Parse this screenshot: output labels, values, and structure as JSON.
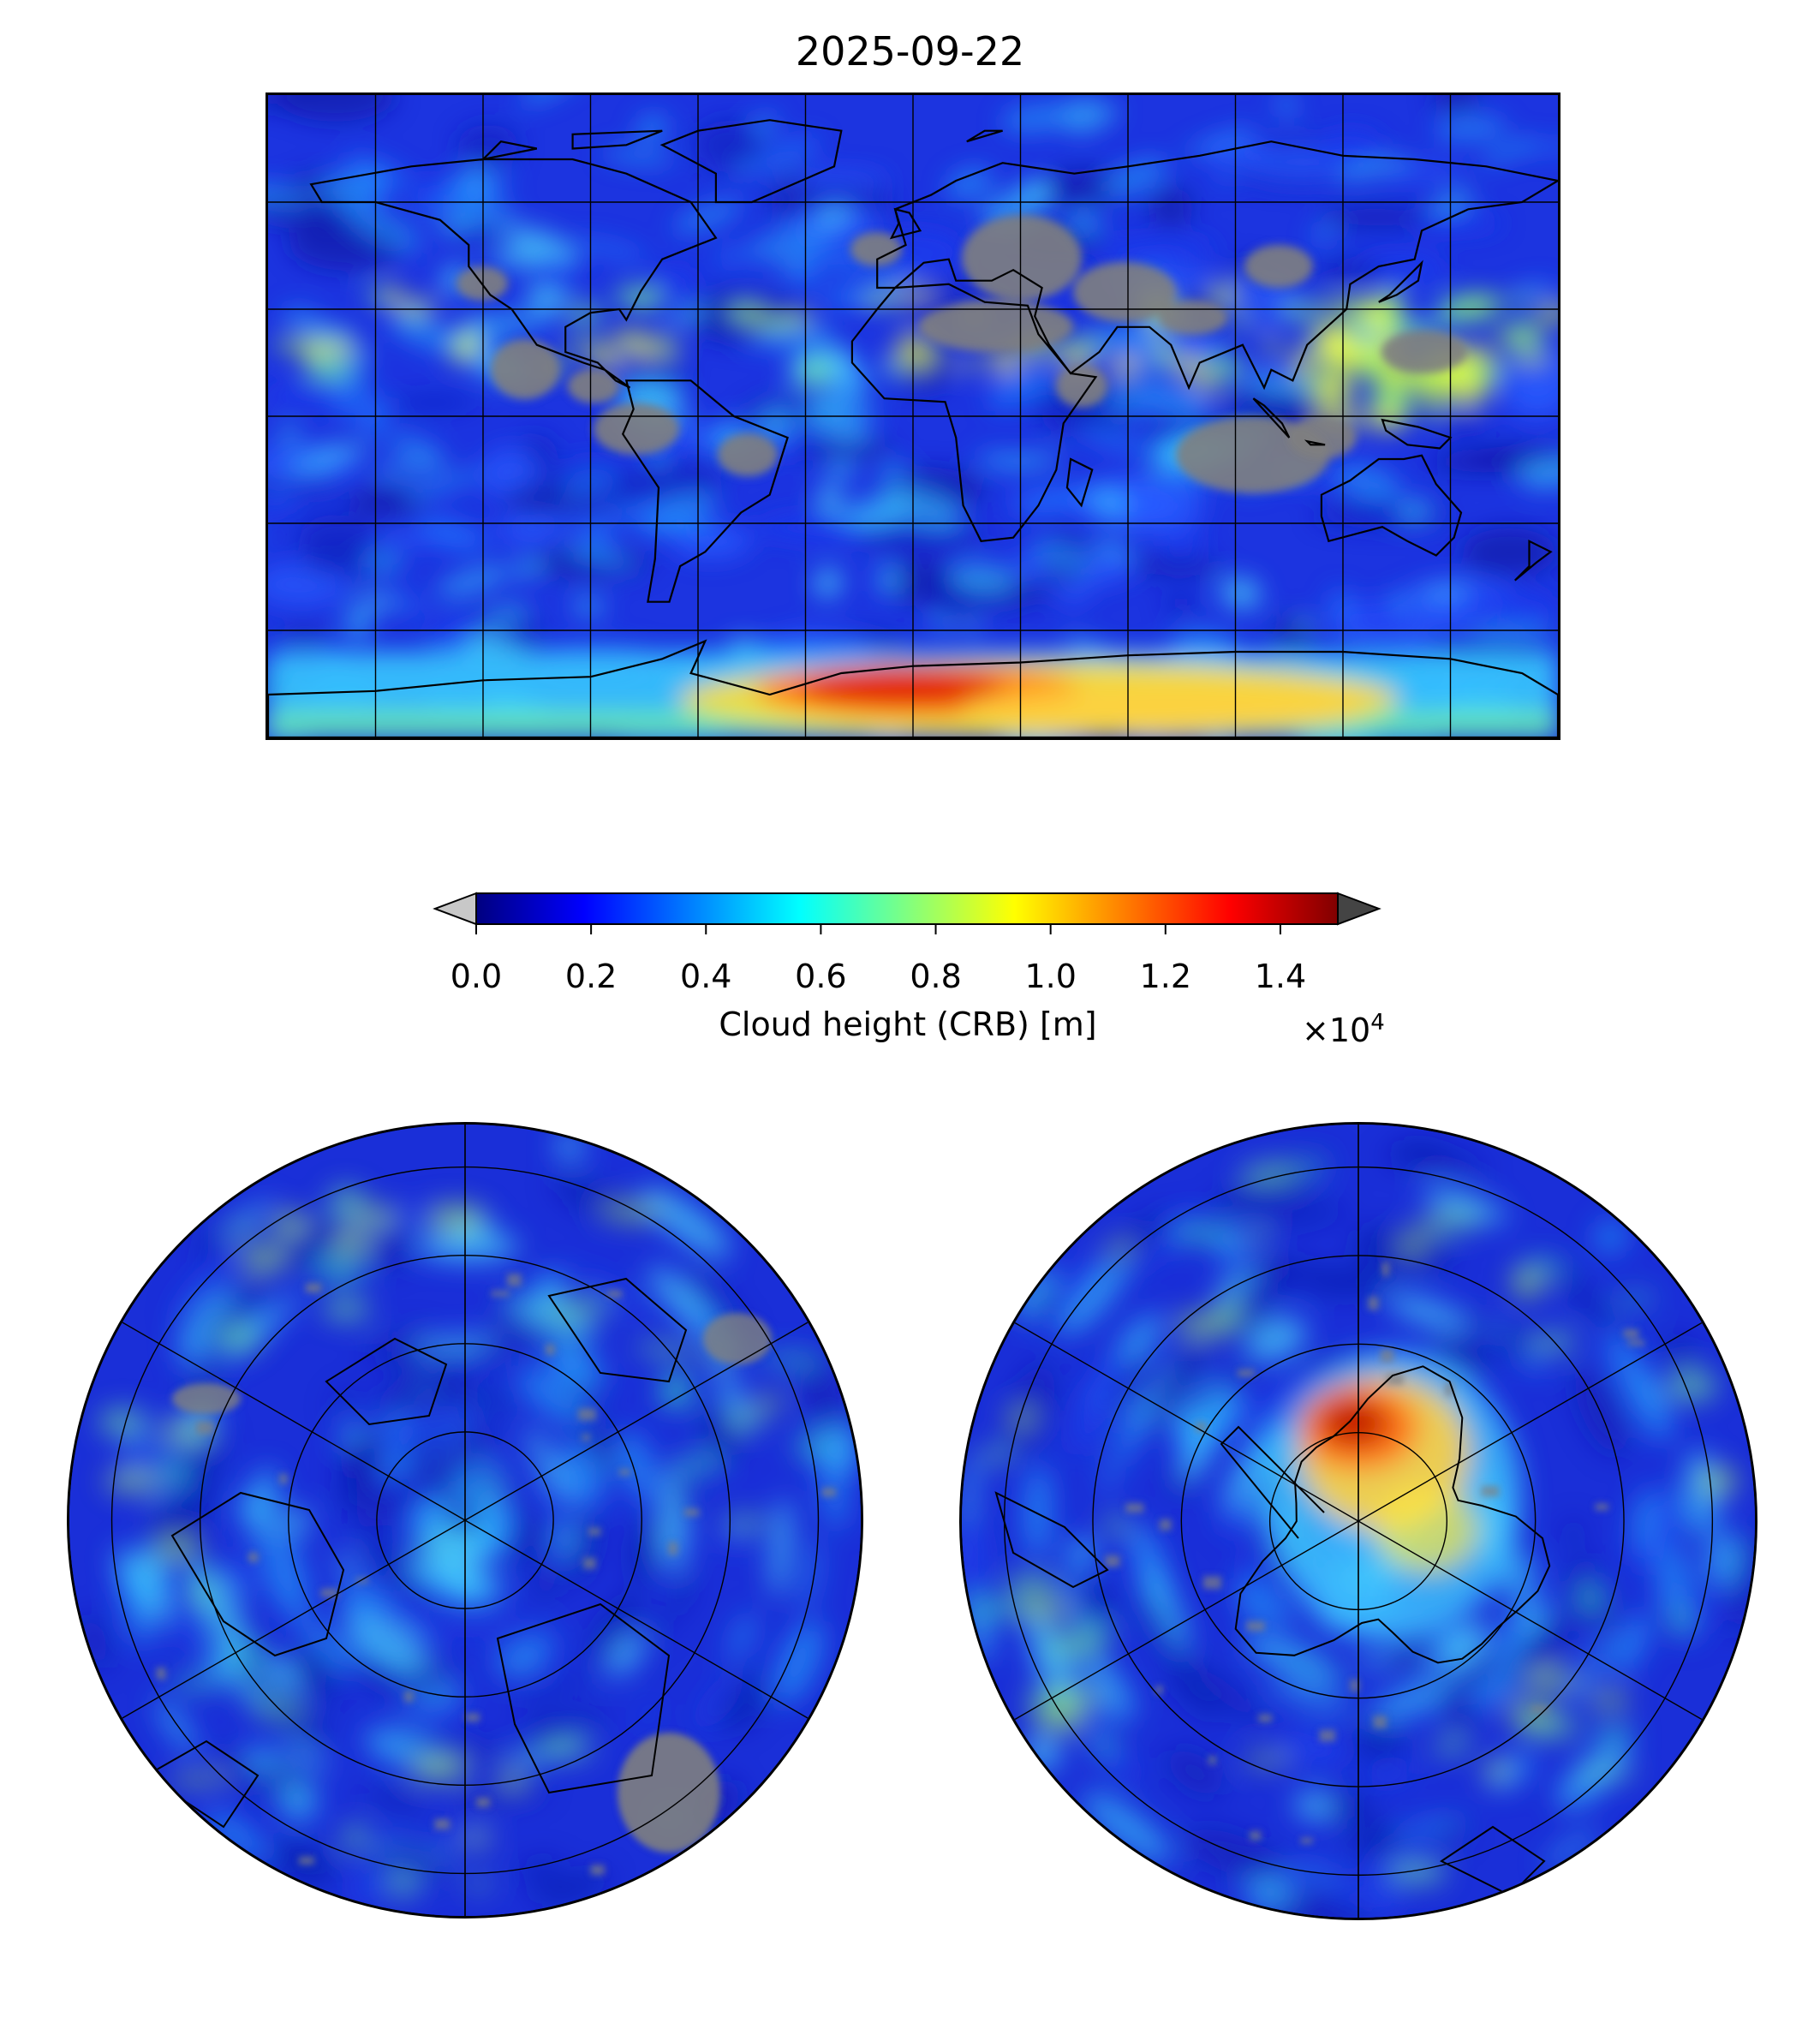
{
  "title": "2025-09-22",
  "colorbar": {
    "label": "Cloud height (CRB) [m]",
    "multiplier_prefix": "×10",
    "multiplier_exponent": "4",
    "ticks": [
      "0.0",
      "0.2",
      "0.4",
      "0.6",
      "0.8",
      "1.0",
      "1.2",
      "1.4"
    ],
    "tick_values": [
      0,
      2000,
      4000,
      6000,
      8000,
      10000,
      12000,
      14000
    ],
    "range": [
      0,
      15000
    ],
    "under_color": "#c8c8c8",
    "over_color": "#444444",
    "colormap": "jet",
    "jet_stops": [
      "#000080",
      "#0000ff",
      "#0080ff",
      "#00ffff",
      "#80ff80",
      "#ffff00",
      "#ff8000",
      "#ff0000",
      "#800000"
    ]
  },
  "maps": {
    "global": {
      "projection": "equirectangular",
      "lon_range": [
        -180,
        180
      ],
      "lat_range": [
        -90,
        90
      ],
      "gridline_lon_step": 30,
      "gridline_lat_step": 30
    },
    "north": {
      "projection": "north-polar-stereographic",
      "gridline_lat": [
        60,
        30,
        0
      ],
      "gridline_lon_step": 60
    },
    "south": {
      "projection": "south-polar-stereographic",
      "gridline_lat": [
        -60,
        -30,
        0
      ],
      "gridline_lon_step": 60
    }
  },
  "colors": {
    "missing_data": "#808080",
    "background_cloud_base": "#1a2bd8",
    "antarctic_high_cloud": "#d42000"
  }
}
